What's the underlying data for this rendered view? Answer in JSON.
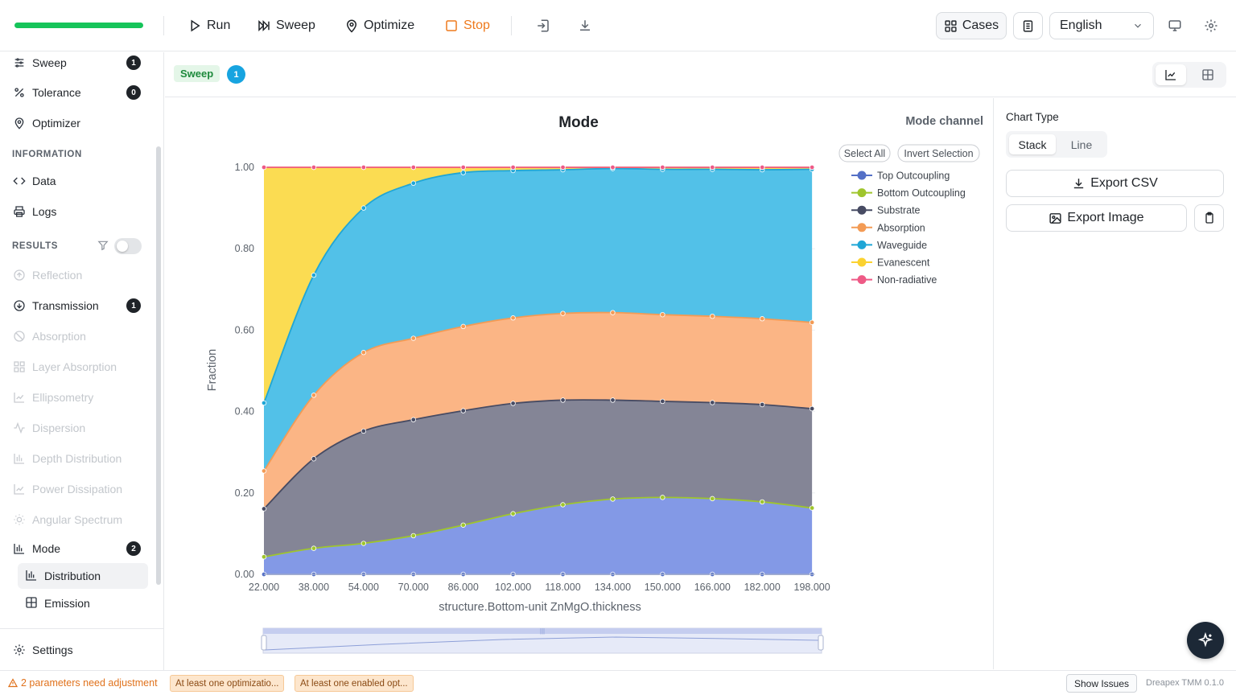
{
  "toolbar": {
    "progress": 1.0,
    "run_label": "Run",
    "sweep_label": "Sweep",
    "optimize_label": "Optimize",
    "stop_label": "Stop",
    "cases_label": "Cases",
    "language": "English"
  },
  "sidebar": {
    "top_items": [
      {
        "label": "Sweep",
        "badge": "1",
        "icon": "sliders-icon"
      },
      {
        "label": "Tolerance",
        "badge": "0",
        "icon": "percent-icon"
      },
      {
        "label": "Optimizer",
        "icon": "pin-icon"
      }
    ],
    "information_header": "INFORMATION",
    "information_items": [
      {
        "label": "Data",
        "icon": "code-icon"
      },
      {
        "label": "Logs",
        "icon": "printer-icon"
      }
    ],
    "results_header": "RESULTS",
    "results_items": [
      {
        "label": "Reflection",
        "disabled": true,
        "icon": "arrow-up-circle-icon"
      },
      {
        "label": "Transmission",
        "badge": "1",
        "disabled": false,
        "icon": "arrow-down-circle-icon"
      },
      {
        "label": "Absorption",
        "disabled": true,
        "icon": "ban-icon"
      },
      {
        "label": "Layer Absorption",
        "disabled": true,
        "icon": "grid-icon"
      },
      {
        "label": "Ellipsometry",
        "disabled": true,
        "icon": "line-chart-icon"
      },
      {
        "label": "Dispersion",
        "disabled": true,
        "icon": "pulse-icon"
      },
      {
        "label": "Depth Distribution",
        "disabled": true,
        "icon": "bar-chart-icon"
      },
      {
        "label": "Power Dissipation",
        "disabled": true,
        "icon": "line-chart-icon"
      },
      {
        "label": "Angular Spectrum",
        "disabled": true,
        "icon": "sun-icon"
      },
      {
        "label": "Mode",
        "badge": "2",
        "disabled": false,
        "icon": "bar-chart-icon"
      }
    ],
    "mode_subitems": [
      {
        "label": "Distribution",
        "active": true,
        "icon": "bar-chart-icon"
      },
      {
        "label": "Emission",
        "active": false,
        "icon": "table-icon"
      }
    ],
    "settings_label": "Settings"
  },
  "tabs": {
    "sweep_tag": "Sweep",
    "sweep_count": "1"
  },
  "chart_panel": {
    "mode_channel_label": "Mode channel",
    "select_all_label": "Select All",
    "invert_selection_label": "Invert Selection"
  },
  "right_panel": {
    "chart_type_label": "Chart Type",
    "stack_label": "Stack",
    "line_label": "Line",
    "export_csv_label": "Export CSV",
    "export_image_label": "Export Image"
  },
  "statusbar": {
    "warning": "2 parameters need adjustment",
    "chip1": "At least one optimizatio...",
    "chip2": "At least one enabled opt...",
    "show_issues_label": "Show Issues",
    "version": "Dreapex TMM 0.1.0"
  },
  "colors": {
    "accent_green": "#16c45a",
    "stop_orange": "#ee7a1d",
    "badge_blue": "#17a4e0"
  },
  "chart_data": {
    "type": "area",
    "stacked": true,
    "title": "Mode",
    "xlabel": "structure.Bottom-unit ZnMgO.thickness",
    "ylabel": "Fraction",
    "ylim": [
      0,
      1
    ],
    "yticks": [
      "0.00",
      "0.20",
      "0.40",
      "0.60",
      "0.80",
      "1.00"
    ],
    "x": [
      22,
      38,
      54,
      70,
      86,
      102,
      118,
      134,
      150,
      166,
      182,
      198
    ],
    "xtick_labels": [
      "22.000",
      "38.000",
      "54.000",
      "70.000",
      "86.000",
      "102.000",
      "118.000",
      "134.000",
      "150.000",
      "166.000",
      "182.000",
      "198.000"
    ],
    "x_max": 199,
    "legend_position": "right",
    "series": [
      {
        "name": "Top Outcoupling",
        "color": "#5470c6",
        "fill": "#8399e6",
        "values": [
          0.0,
          0.0,
          0.0,
          0.0,
          0.0,
          0.0,
          0.0,
          0.0,
          0.0,
          0.0,
          0.0,
          0.0
        ]
      },
      {
        "name": "Bottom Outcoupling",
        "color": "#9fc52d",
        "fill": "#8399e6",
        "values": [
          0.043,
          0.064,
          0.076,
          0.095,
          0.121,
          0.149,
          0.171,
          0.185,
          0.189,
          0.186,
          0.178,
          0.163
        ]
      },
      {
        "name": "Substrate",
        "color": "#474b63",
        "fill": "#848596",
        "values": [
          0.118,
          0.22,
          0.276,
          0.285,
          0.281,
          0.271,
          0.257,
          0.243,
          0.236,
          0.236,
          0.239,
          0.244
        ]
      },
      {
        "name": "Absorption",
        "color": "#f39b55",
        "fill": "#fbb585",
        "values": [
          0.093,
          0.156,
          0.193,
          0.2,
          0.207,
          0.21,
          0.213,
          0.215,
          0.213,
          0.212,
          0.211,
          0.212
        ]
      },
      {
        "name": "Waveguide",
        "color": "#1fa6d6",
        "fill": "#52c1e8",
        "values": [
          0.167,
          0.295,
          0.355,
          0.381,
          0.378,
          0.362,
          0.353,
          0.354,
          0.357,
          0.361,
          0.366,
          0.376
        ]
      },
      {
        "name": "Evanescent",
        "color": "#fbd230",
        "fill": "#fbdc52",
        "values": [
          0.579,
          0.265,
          0.1,
          0.039,
          0.013,
          0.008,
          0.006,
          0.003,
          0.005,
          0.005,
          0.006,
          0.005
        ]
      },
      {
        "name": "Non-radiative",
        "color": "#ee5a86",
        "fill": "#ee5a86",
        "values": [
          0.0,
          0.0,
          0.0,
          0.0,
          0.0,
          0.0,
          0.0,
          0.0,
          0.0,
          0.0,
          0.0,
          0.0
        ]
      }
    ]
  }
}
